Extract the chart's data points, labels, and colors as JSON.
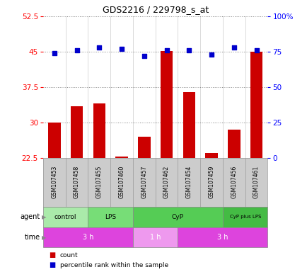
{
  "title": "GDS2216 / 229798_s_at",
  "samples": [
    "GSM107453",
    "GSM107458",
    "GSM107455",
    "GSM107460",
    "GSM107457",
    "GSM107462",
    "GSM107454",
    "GSM107459",
    "GSM107456",
    "GSM107461"
  ],
  "counts": [
    30.0,
    33.5,
    34.0,
    22.8,
    27.0,
    45.2,
    36.5,
    23.5,
    28.5,
    45.0
  ],
  "percentile_ranks": [
    74,
    76,
    78,
    77,
    72,
    76,
    76,
    73,
    78,
    76
  ],
  "ylim_left": [
    22.5,
    52.5
  ],
  "ylim_right": [
    0,
    100
  ],
  "yticks_left": [
    22.5,
    30,
    37.5,
    45,
    52.5
  ],
  "yticks_right": [
    0,
    25,
    50,
    75,
    100
  ],
  "ytick_labels_left": [
    "22.5",
    "30",
    "37.5",
    "45",
    "52.5"
  ],
  "ytick_labels_right": [
    "0",
    "25",
    "50",
    "75",
    "100%"
  ],
  "bar_color": "#cc0000",
  "scatter_color": "#0000cc",
  "agent_groups": [
    {
      "label": "control",
      "start": 0,
      "end": 2,
      "color": "#aaeaaa"
    },
    {
      "label": "LPS",
      "start": 2,
      "end": 4,
      "color": "#77dd77"
    },
    {
      "label": "CyP",
      "start": 4,
      "end": 8,
      "color": "#55cc55"
    },
    {
      "label": "CyP plus LPS",
      "start": 8,
      "end": 10,
      "color": "#44bb44"
    }
  ],
  "time_groups": [
    {
      "label": "3 h",
      "start": 0,
      "end": 4,
      "color": "#dd44dd"
    },
    {
      "label": "1 h",
      "start": 4,
      "end": 6,
      "color": "#ee99ee"
    },
    {
      "label": "3 h",
      "start": 6,
      "end": 10,
      "color": "#dd44dd"
    }
  ],
  "sample_bg_color": "#cccccc",
  "dotted_line_color": "#888888",
  "bg_color": "#ffffff"
}
